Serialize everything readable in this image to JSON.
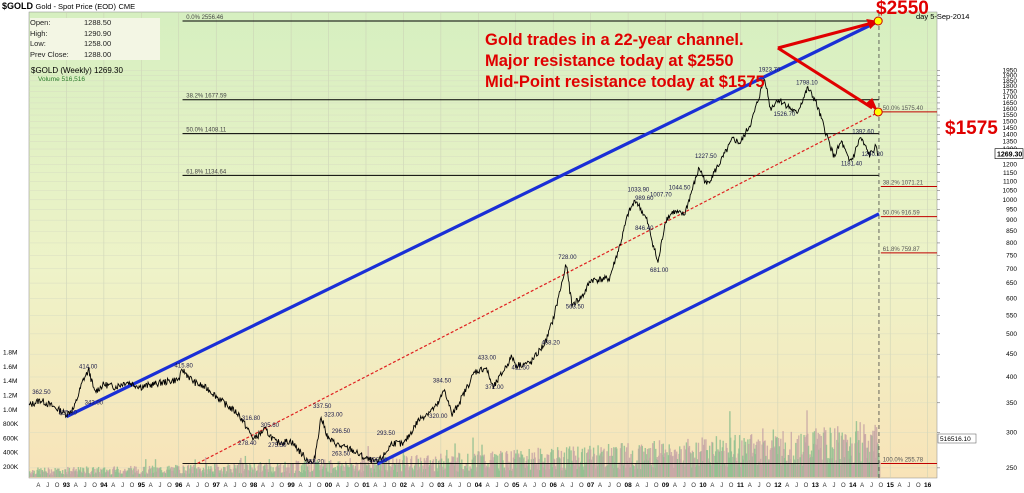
{
  "header": {
    "title": "$GOLD",
    "subtitle": "Gold - Spot Price (EOD)",
    "exchange": "CME",
    "date": "5-Sep-2014",
    "date_prefix": "day"
  },
  "ohlc": {
    "open_label": "Open:",
    "open": "1288.50",
    "high_label": "High:",
    "high": "1290.90",
    "low_label": "Low:",
    "low": "1258.00",
    "prev_label": "Prev Close:",
    "prev": "1288.00"
  },
  "legend": {
    "price": "$GOLD (Weekly) 1269.30",
    "volume": "Volume 516,516"
  },
  "annotation": {
    "line1": "Gold trades in a 22-year channel.",
    "line2": "Major resistance today at $2550",
    "line3": "Mid-Point resistance today at $1575",
    "target_upper": "$2550",
    "target_mid": "$1575"
  },
  "chart_data": {
    "type": "line",
    "y_scale": "log",
    "ylim": [
      240,
      2000
    ],
    "x_range": [
      1992.0,
      2016.25
    ],
    "grid": true,
    "last_price_label": "1269.30",
    "volume_end_label": "516516.10",
    "y_ticks": [
      250,
      300,
      350,
      400,
      450,
      500,
      550,
      600,
      650,
      700,
      750,
      800,
      850,
      900,
      950,
      1000,
      1050,
      1100,
      1150,
      1200,
      1250,
      1300,
      1350,
      1400,
      1450,
      1500,
      1550,
      1600,
      1650,
      1700,
      1750,
      1800,
      1850,
      1900,
      1950
    ],
    "volume_ticks": [
      "200K",
      "400K",
      "600K",
      "800K",
      "1.0M",
      "1.2M",
      "1.4M",
      "1.6M",
      "1.8M"
    ],
    "x_year_labels": [
      {
        "x": 1993.0,
        "label": "93"
      },
      {
        "x": 1994.0,
        "label": "94"
      },
      {
        "x": 1995.0,
        "label": "95"
      },
      {
        "x": 1996.0,
        "label": "96"
      },
      {
        "x": 1997.0,
        "label": "97"
      },
      {
        "x": 1998.0,
        "label": "98"
      },
      {
        "x": 1999.0,
        "label": "99"
      },
      {
        "x": 2000.0,
        "label": "00"
      },
      {
        "x": 2001.0,
        "label": "01"
      },
      {
        "x": 2002.0,
        "label": "02"
      },
      {
        "x": 2003.0,
        "label": "03"
      },
      {
        "x": 2004.0,
        "label": "04"
      },
      {
        "x": 2005.0,
        "label": "05"
      },
      {
        "x": 2006.0,
        "label": "06"
      },
      {
        "x": 2007.0,
        "label": "07"
      },
      {
        "x": 2008.0,
        "label": "08"
      },
      {
        "x": 2009.0,
        "label": "09"
      },
      {
        "x": 2010.0,
        "label": "10"
      },
      {
        "x": 2011.0,
        "label": "11"
      },
      {
        "x": 2012.0,
        "label": "12"
      },
      {
        "x": 2013.0,
        "label": "13"
      },
      {
        "x": 2014.0,
        "label": "14"
      },
      {
        "x": 2015.0,
        "label": "15"
      },
      {
        "x": 2016.0,
        "label": "16"
      }
    ],
    "x_month_letters": [
      "A",
      "J",
      "O"
    ],
    "price_series": [
      [
        1992.0,
        345
      ],
      [
        1992.3,
        355
      ],
      [
        1992.6,
        345
      ],
      [
        1993.0,
        330
      ],
      [
        1993.2,
        340
      ],
      [
        1993.45,
        395
      ],
      [
        1993.6,
        414
      ],
      [
        1993.75,
        370
      ],
      [
        1994.0,
        385
      ],
      [
        1994.3,
        380
      ],
      [
        1994.6,
        390
      ],
      [
        1995.0,
        380
      ],
      [
        1995.5,
        388
      ],
      [
        1996.0,
        395
      ],
      [
        1996.1,
        415
      ],
      [
        1996.4,
        390
      ],
      [
        1996.8,
        375
      ],
      [
        1997.2,
        350
      ],
      [
        1997.6,
        330
      ],
      [
        1998.0,
        290
      ],
      [
        1998.3,
        305
      ],
      [
        1998.6,
        285
      ],
      [
        1999.0,
        287
      ],
      [
        1999.4,
        262
      ],
      [
        1999.6,
        255
      ],
      [
        1999.8,
        325
      ],
      [
        2000.0,
        290
      ],
      [
        2000.3,
        280
      ],
      [
        2000.6,
        275
      ],
      [
        2000.9,
        265
      ],
      [
        2001.0,
        262
      ],
      [
        2001.3,
        257
      ],
      [
        2001.5,
        268
      ],
      [
        2001.7,
        285
      ],
      [
        2002.0,
        282
      ],
      [
        2002.4,
        320
      ],
      [
        2002.9,
        345
      ],
      [
        2003.1,
        375
      ],
      [
        2003.3,
        328
      ],
      [
        2003.6,
        365
      ],
      [
        2003.9,
        410
      ],
      [
        2004.2,
        420
      ],
      [
        2004.4,
        378
      ],
      [
        2004.9,
        445
      ],
      [
        2005.0,
        425
      ],
      [
        2005.4,
        430
      ],
      [
        2005.8,
        480
      ],
      [
        2006.0,
        540
      ],
      [
        2006.35,
        715
      ],
      [
        2006.5,
        580
      ],
      [
        2006.8,
        610
      ],
      [
        2007.0,
        660
      ],
      [
        2007.5,
        665
      ],
      [
        2007.8,
        800
      ],
      [
        2008.0,
        930
      ],
      [
        2008.2,
        1000
      ],
      [
        2008.5,
        900
      ],
      [
        2008.8,
        720
      ],
      [
        2009.0,
        900
      ],
      [
        2009.2,
        940
      ],
      [
        2009.5,
        925
      ],
      [
        2009.9,
        1180
      ],
      [
        2010.1,
        1080
      ],
      [
        2010.5,
        1230
      ],
      [
        2010.8,
        1370
      ],
      [
        2011.0,
        1340
      ],
      [
        2011.3,
        1500
      ],
      [
        2011.65,
        1880
      ],
      [
        2011.8,
        1600
      ],
      [
        2012.0,
        1680
      ],
      [
        2012.2,
        1640
      ],
      [
        2012.5,
        1560
      ],
      [
        2012.8,
        1780
      ],
      [
        2013.0,
        1670
      ],
      [
        2013.3,
        1400
      ],
      [
        2013.5,
        1250
      ],
      [
        2013.7,
        1350
      ],
      [
        2013.9,
        1220
      ],
      [
        2014.0,
        1240
      ],
      [
        2014.2,
        1380
      ],
      [
        2014.45,
        1260
      ],
      [
        2014.6,
        1310
      ],
      [
        2014.68,
        1269
      ]
    ],
    "price_labels": [
      {
        "x": 1992.3,
        "y": 362.5,
        "label": "362.50"
      },
      {
        "x": 1993.55,
        "y": 414.0,
        "label": "414.00"
      },
      {
        "x": 1993.0,
        "y": 325.8,
        "label": "325.80"
      },
      {
        "x": 1993.7,
        "y": 343.0,
        "label": "343.00"
      },
      {
        "x": 1996.1,
        "y": 415.8,
        "label": "415.80"
      },
      {
        "x": 1997.9,
        "y": 316.8,
        "label": "316.80"
      },
      {
        "x": 1998.4,
        "y": 305.6,
        "label": "305.60"
      },
      {
        "x": 1997.8,
        "y": 278.4,
        "label": "278.40"
      },
      {
        "x": 1998.6,
        "y": 275.5,
        "label": "275.50"
      },
      {
        "x": 1999.8,
        "y": 337.5,
        "label": "337.50"
      },
      {
        "x": 2000.1,
        "y": 323.0,
        "label": "323.00"
      },
      {
        "x": 2000.3,
        "y": 296.5,
        "label": "296.50"
      },
      {
        "x": 2000.3,
        "y": 263.5,
        "label": "263.50"
      },
      {
        "x": 1999.6,
        "y": 253.2,
        "label": "253.20"
      },
      {
        "x": 2001.5,
        "y": 293.5,
        "label": "293.50"
      },
      {
        "x": 2001.3,
        "y": 255.0,
        "label": "255.00"
      },
      {
        "x": 2003.0,
        "y": 384.5,
        "label": "384.50"
      },
      {
        "x": 2002.9,
        "y": 320.0,
        "label": "320.00"
      },
      {
        "x": 2004.2,
        "y": 433.0,
        "label": "433.00"
      },
      {
        "x": 2004.4,
        "y": 372.0,
        "label": "372.00"
      },
      {
        "x": 2005.9,
        "y": 468.2,
        "label": "468.20"
      },
      {
        "x": 2005.1,
        "y": 411.5,
        "label": "411.50"
      },
      {
        "x": 2006.35,
        "y": 728.0,
        "label": "728.00"
      },
      {
        "x": 2006.55,
        "y": 563.5,
        "label": "563.50"
      },
      {
        "x": 2008.2,
        "y": 1033.9,
        "label": "1033.90"
      },
      {
        "x": 2008.4,
        "y": 989.6,
        "label": "989.60"
      },
      {
        "x": 2008.8,
        "y": 1007.7,
        "label": "1007.70"
      },
      {
        "x": 2008.4,
        "y": 846.4,
        "label": "846.40"
      },
      {
        "x": 2008.8,
        "y": 681.0,
        "label": "681.00"
      },
      {
        "x": 2009.3,
        "y": 1044.5,
        "label": "1044.50"
      },
      {
        "x": 2010.0,
        "y": 1227.5,
        "label": "1227.50"
      },
      {
        "x": 2011.7,
        "y": 1923.7,
        "label": "1923.70"
      },
      {
        "x": 2012.7,
        "y": 1798.1,
        "label": "1798.10"
      },
      {
        "x": 2012.1,
        "y": 1526.7,
        "label": "1526.70"
      },
      {
        "x": 2014.2,
        "y": 1392.6,
        "label": "1392.60"
      },
      {
        "x": 2014.45,
        "y": 1240.2,
        "label": "1240.20"
      },
      {
        "x": 2013.9,
        "y": 1181.4,
        "label": "1181.40"
      }
    ],
    "fib_top": [
      {
        "pct": "0.0%",
        "value": 2556.46,
        "x_end": 2014.7
      },
      {
        "pct": "38.2%",
        "value": 1677.59,
        "x_end": 2014.7
      },
      {
        "pct": "50.0%",
        "value": 1408.11,
        "x_end": 2014.7
      },
      {
        "pct": "61.8%",
        "value": 1134.64,
        "x_end": 2014.7
      }
    ],
    "fib_right": [
      {
        "label": "50.0% 1575.40",
        "value": 1575.4
      },
      {
        "label": "38.2% 1071.21",
        "value": 1071.21
      },
      {
        "label": "50.0% 916.59",
        "value": 916.59
      },
      {
        "label": "61.8% 759.87",
        "value": 759.87
      },
      {
        "label": "100.0% 255.78",
        "value": 255.78
      }
    ],
    "fib_bottom": {
      "label": "100.0% 255.78",
      "value": 255.78
    },
    "channel_upper": {
      "x0": 1993.0,
      "y0": 325.8,
      "x1": 2014.7,
      "y1": 2550
    },
    "channel_lower": {
      "x0": 2001.3,
      "y0": 255.0,
      "x1": 2014.7,
      "y1": 930
    },
    "midline": {
      "x0": 1996.5,
      "y0": 255.8,
      "x1": 2014.7,
      "y1": 1575
    },
    "upper_target": {
      "x": 2014.68,
      "y": 2550
    },
    "mid_target": {
      "x": 2014.68,
      "y": 1575
    },
    "volume_series": "weekly bars rising from ~200K in 1992 to ~1.2M by 2013",
    "colors": {
      "price": "#000000",
      "channel": "#1a2fd6",
      "midline": "#e02020",
      "annotation": "#e00000",
      "fib_line": "#000000",
      "fib_right": "#c00000",
      "vol_up": "#c7a6a6",
      "vol_down": "#8fbe8f"
    }
  }
}
